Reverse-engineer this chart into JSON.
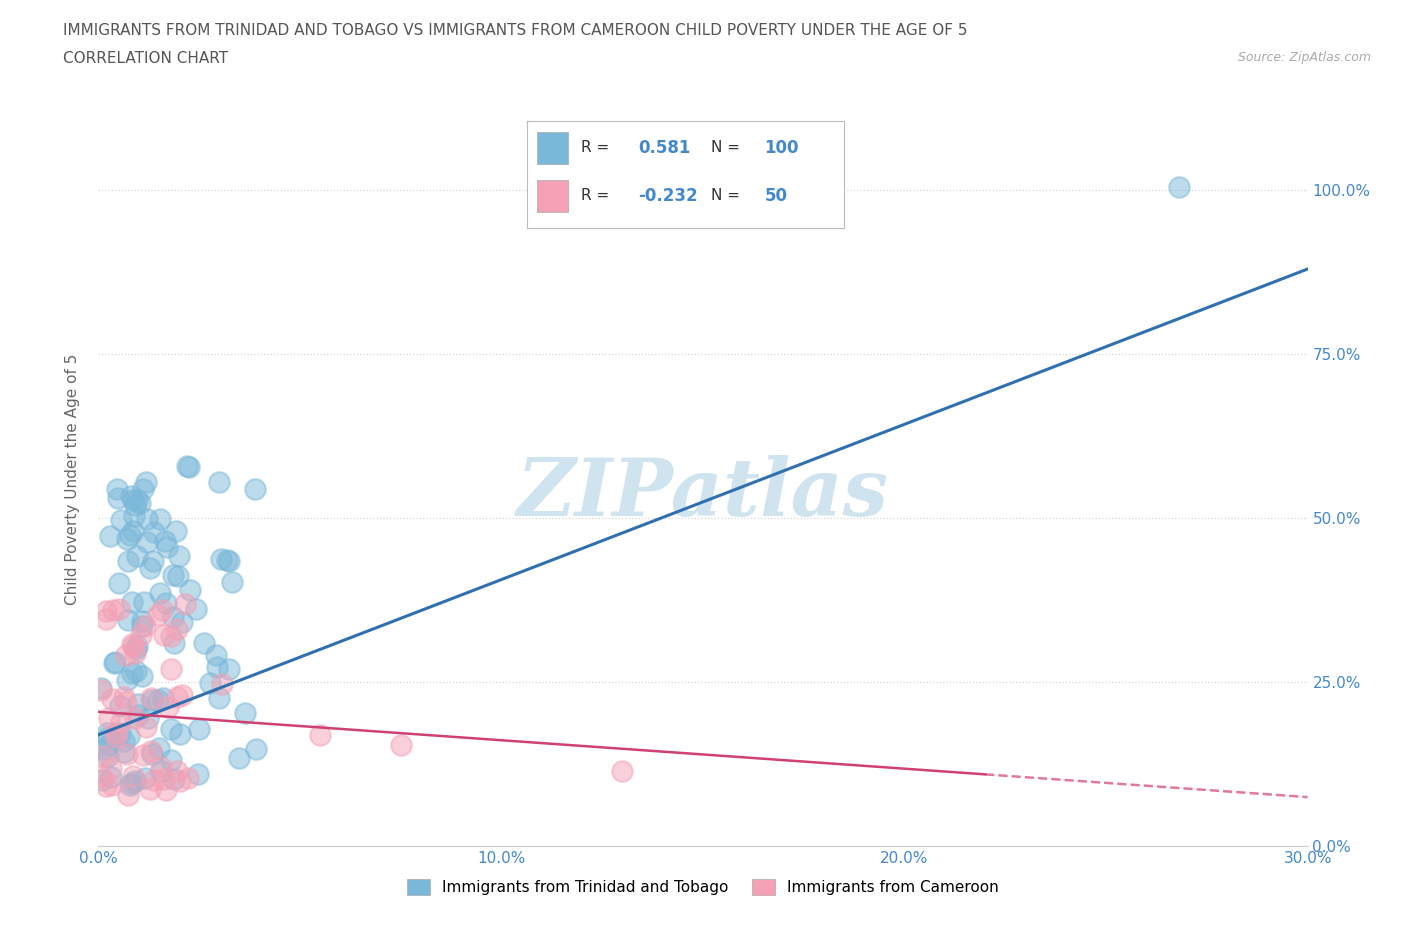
{
  "title_line1": "IMMIGRANTS FROM TRINIDAD AND TOBAGO VS IMMIGRANTS FROM CAMEROON CHILD POVERTY UNDER THE AGE OF 5",
  "title_line2": "CORRELATION CHART",
  "source_text": "Source: ZipAtlas.com",
  "ylabel": "Child Poverty Under the Age of 5",
  "xmin": 0.0,
  "xmax": 0.3,
  "ymin": 0.0,
  "ymax": 1.12,
  "ytick_labels": [
    "0.0%",
    "25.0%",
    "50.0%",
    "75.0%",
    "100.0%"
  ],
  "ytick_values": [
    0.0,
    0.25,
    0.5,
    0.75,
    1.0
  ],
  "xtick_labels": [
    "0.0%",
    "10.0%",
    "20.0%",
    "30.0%"
  ],
  "xtick_values": [
    0.0,
    0.1,
    0.2,
    0.3
  ],
  "r_tt": 0.581,
  "n_tt": 100,
  "r_cam": -0.232,
  "n_cam": 50,
  "color_tt": "#7ab8d9",
  "color_cam": "#f4a0b5",
  "line_color_tt": "#3070b0",
  "line_color_cam": "#d04070",
  "watermark_text": "ZIPatlas",
  "watermark_color": "#d0e4f0",
  "legend_label_tt": "Immigrants from Trinidad and Tobago",
  "legend_label_cam": "Immigrants from Cameroon",
  "background_color": "#ffffff",
  "grid_color": "#cccccc",
  "title_color": "#555555",
  "axis_label_color": "#4488cc",
  "tt_line_x0": 0.0,
  "tt_line_y0": 0.17,
  "tt_line_x1": 0.3,
  "tt_line_y1": 0.88,
  "cam_line_x0": 0.0,
  "cam_line_y0": 0.205,
  "cam_line_x1": 0.3,
  "cam_line_y1": 0.075
}
